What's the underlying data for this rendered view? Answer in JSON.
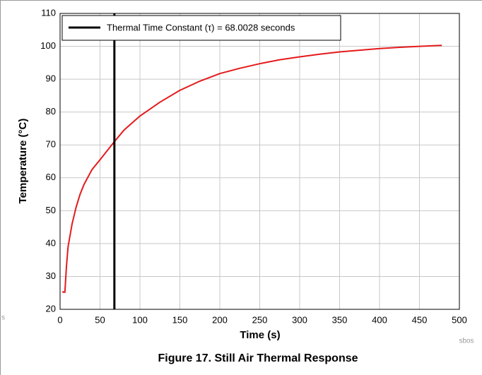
{
  "chart_data": {
    "type": "line",
    "title": "Figure 17. Still Air Thermal Response",
    "x_label": "Time (s)",
    "y_label": "Temperature (°C)",
    "x": [
      3,
      4,
      6,
      8,
      10,
      15,
      20,
      25,
      30,
      40,
      50,
      68,
      80,
      100,
      125,
      150,
      175,
      200,
      225,
      250,
      275,
      300,
      325,
      350,
      375,
      400,
      425,
      450,
      478
    ],
    "series": [
      {
        "color": "#e41a1c",
        "values": [
          25.5,
          25.2,
          25.2,
          33,
          39,
          46,
          51,
          55,
          58,
          62.5,
          65.5,
          71,
          74.5,
          78.8,
          83,
          86.6,
          89.4,
          91.7,
          93.3,
          94.7,
          95.9,
          96.8,
          97.6,
          98.3,
          98.8,
          99.3,
          99.7,
          100,
          100.3
        ]
      }
    ],
    "vline": {
      "x": 68.0028,
      "label": "Thermal Time Constant (τ) = 68.0028 seconds",
      "color": "#000000"
    },
    "xlim": [
      0,
      500
    ],
    "xticks": [
      0,
      50,
      100,
      150,
      200,
      250,
      300,
      350,
      400,
      450,
      500
    ],
    "ylim": [
      20,
      110
    ],
    "yticks": [
      20,
      30,
      40,
      50,
      60,
      70,
      80,
      90,
      100,
      110
    ],
    "grid": true,
    "legend": "top-left",
    "footer": "sbos",
    "side_note": "s"
  }
}
